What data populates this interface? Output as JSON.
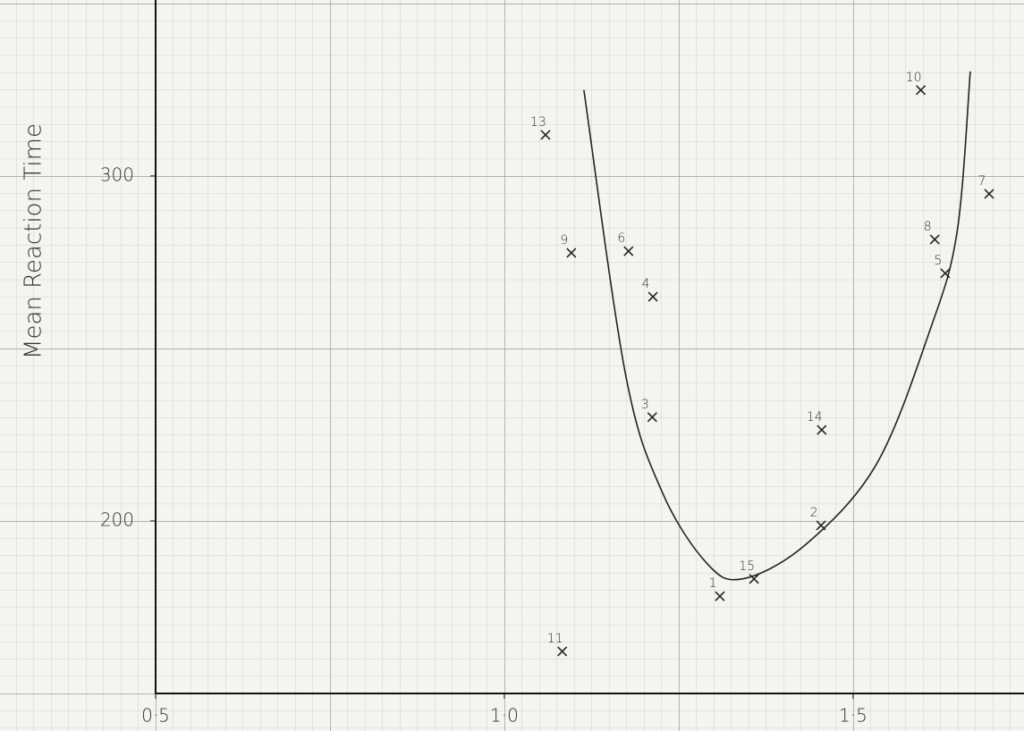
{
  "chart_data": {
    "type": "scatter",
    "y_label": "Mean Reaction Time",
    "point_labels": [
      "1",
      "2",
      "3",
      "4",
      "5",
      "6",
      "7",
      "8",
      "9",
      "10",
      "11",
      "13",
      "14",
      "15"
    ],
    "x": [
      1.309,
      1.454,
      1.212,
      1.213,
      1.632,
      1.178,
      1.695,
      1.617,
      1.096,
      1.597,
      1.083,
      1.059,
      1.455,
      1.358
    ],
    "values": [
      178.2,
      198.7,
      230.1,
      265.0,
      271.8,
      278.2,
      294.8,
      281.6,
      277.7,
      324.9,
      162.2,
      311.9,
      226.4,
      183.2
    ],
    "curve_x": [
      1.114,
      1.174,
      1.226,
      1.29,
      1.341,
      1.431,
      1.533,
      1.61,
      1.649,
      1.668
    ],
    "curve_y": [
      324.9,
      242.2,
      208.5,
      187.8,
      183.2,
      193.0,
      216.3,
      255.2,
      283.7,
      330.3
    ],
    "color": "#222222",
    "xlim": [
      0.5,
      1.745
    ],
    "ylim": [
      150,
      351
    ],
    "xticks": [
      {
        "value": 0.5,
        "label": "0·5"
      },
      {
        "value": 1.0,
        "label": "1·0"
      },
      {
        "value": 1.5,
        "label": "1·5"
      }
    ],
    "yticks": [
      200,
      300
    ]
  }
}
